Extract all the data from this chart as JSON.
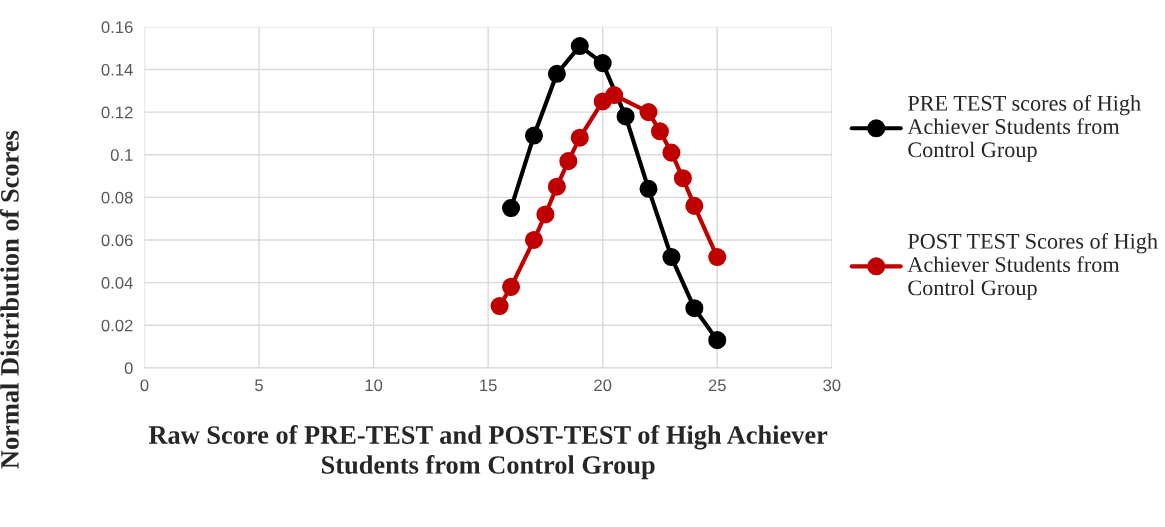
{
  "chart_data": {
    "type": "line",
    "xlabel": "Raw Score of PRE-TEST and POST-TEST of High Achiever Students from Control Group",
    "ylabel": "Normal Distribution of Scores",
    "xlim": [
      0,
      30
    ],
    "xticks": [
      0,
      5,
      10,
      15,
      20,
      25,
      30
    ],
    "ylim": [
      0,
      0.16
    ],
    "yticks": [
      0,
      0.02,
      0.04,
      0.06,
      0.08,
      0.1,
      0.12,
      0.14,
      0.16
    ],
    "grid": true,
    "legend": "right",
    "marker": "circle",
    "line_style": "solid",
    "series": [
      {
        "name": "PRE TEST scores of High Achiever Students from Control Group",
        "color": "#000000",
        "x": [
          16,
          17,
          18,
          19,
          20,
          21,
          22,
          23,
          24,
          25
        ],
        "values": [
          0.075,
          0.109,
          0.138,
          0.151,
          0.143,
          0.118,
          0.084,
          0.052,
          0.028,
          0.013
        ]
      },
      {
        "name": "POST TEST Scores of High Achiever Students from Control Group",
        "color": "#c00000",
        "x": [
          15.5,
          16,
          17,
          17.5,
          18,
          18.5,
          19,
          20,
          20.5,
          22,
          22.5,
          23,
          23.5,
          24,
          25
        ],
        "values": [
          0.029,
          0.038,
          0.06,
          0.072,
          0.085,
          0.097,
          0.108,
          0.125,
          0.128,
          0.12,
          0.111,
          0.101,
          0.089,
          0.076,
          0.052
        ]
      }
    ]
  }
}
